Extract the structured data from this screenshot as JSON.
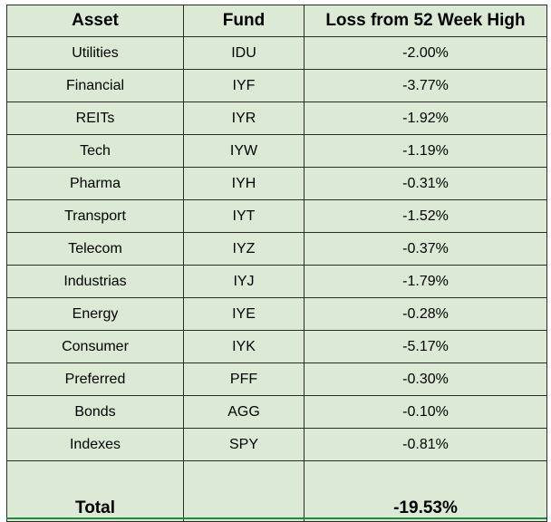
{
  "table": {
    "headers": {
      "asset": "Asset",
      "fund": "Fund",
      "loss": "Loss from 52 Week High"
    },
    "rows": [
      {
        "asset": "Utilities",
        "fund": "IDU",
        "loss": "-2.00%"
      },
      {
        "asset": "Financial",
        "fund": "IYF",
        "loss": "-3.77%"
      },
      {
        "asset": "REITs",
        "fund": "IYR",
        "loss": "-1.92%"
      },
      {
        "asset": "Tech",
        "fund": "IYW",
        "loss": "-1.19%"
      },
      {
        "asset": "Pharma",
        "fund": "IYH",
        "loss": "-0.31%"
      },
      {
        "asset": "Transport",
        "fund": "IYT",
        "loss": "-1.52%"
      },
      {
        "asset": "Telecom",
        "fund": "IYZ",
        "loss": "-0.37%"
      },
      {
        "asset": "Industrias",
        "fund": "IYJ",
        "loss": "-1.79%"
      },
      {
        "asset": "Energy",
        "fund": "IYE",
        "loss": "-0.28%"
      },
      {
        "asset": "Consumer",
        "fund": "IYK",
        "loss": "-5.17%"
      },
      {
        "asset": "Preferred",
        "fund": "PFF",
        "loss": "-0.30%"
      },
      {
        "asset": "Bonds",
        "fund": "AGG",
        "loss": "-0.10%"
      },
      {
        "asset": "Indexes",
        "fund": "SPY",
        "loss": "-0.81%"
      }
    ],
    "total": {
      "label": "Total",
      "fund": "",
      "loss": "-19.53%"
    }
  },
  "colors": {
    "cell_background": "#dbe9d5",
    "grid_line": "#2b2b2b",
    "selection_underline": "#1e8e3e"
  }
}
